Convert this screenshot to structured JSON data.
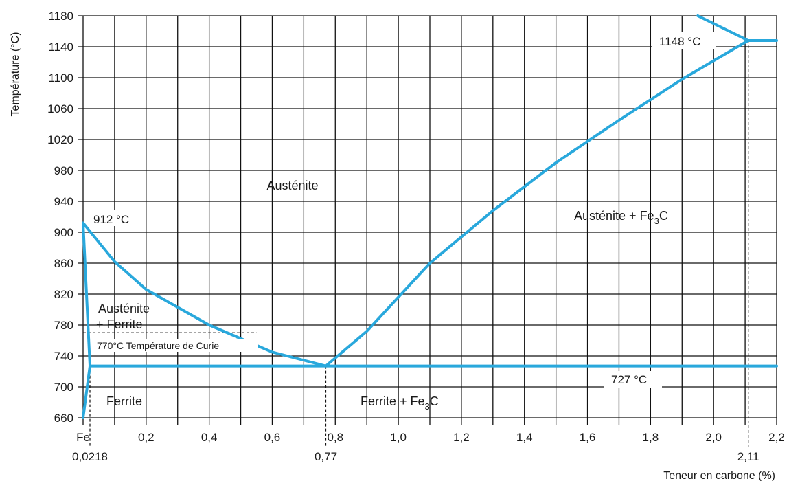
{
  "chart_data": {
    "type": "line",
    "title": "",
    "xlabel": "Teneur en carbone (%)",
    "ylabel": "Température (°C)",
    "xlim": [
      0,
      2.2
    ],
    "ylim": [
      660,
      1180
    ],
    "grid": true,
    "x_ticks": [
      {
        "value": 0,
        "label": "Fe"
      },
      {
        "value": 0.2,
        "label": "0,2"
      },
      {
        "value": 0.4,
        "label": "0,4"
      },
      {
        "value": 0.6,
        "label": "0,6"
      },
      {
        "value": 0.8,
        "label": "0,8"
      },
      {
        "value": 1.0,
        "label": "1,0"
      },
      {
        "value": 1.2,
        "label": "1,2"
      },
      {
        "value": 1.4,
        "label": "1,4"
      },
      {
        "value": 1.6,
        "label": "1,6"
      },
      {
        "value": 1.8,
        "label": "1,8"
      },
      {
        "value": 2.0,
        "label": "2,0"
      },
      {
        "value": 2.2,
        "label": "2,2"
      }
    ],
    "y_ticks": [
      660,
      700,
      740,
      780,
      820,
      860,
      900,
      940,
      980,
      1020,
      1060,
      1100,
      1140,
      1180
    ],
    "grid_step_x": 0.1,
    "grid_step_y": 40,
    "line_color": "#29a8dc",
    "series": [
      {
        "id": "a3-line",
        "x": [
          0,
          0.1,
          0.2,
          0.4,
          0.6,
          0.77
        ],
        "y": [
          912,
          862,
          826,
          780,
          745,
          727
        ]
      },
      {
        "id": "acm-line",
        "x": [
          0.77,
          0.9,
          1.1,
          1.3,
          1.5,
          1.7,
          1.9,
          2.11
        ],
        "y": [
          727,
          772,
          860,
          928,
          990,
          1045,
          1098,
          1148
        ]
      },
      {
        "id": "eutectoid-line",
        "x": [
          0.0218,
          2.2
        ],
        "y": [
          727,
          727
        ]
      },
      {
        "id": "eutectic-line",
        "x": [
          2.11,
          2.2
        ],
        "y": [
          1148,
          1148
        ]
      },
      {
        "id": "ferrite-solvus-upper",
        "x": [
          0,
          0.0218
        ],
        "y": [
          912,
          727
        ]
      },
      {
        "id": "ferrite-solvus-lower",
        "x": [
          0.0218,
          0
        ],
        "y": [
          727,
          660
        ]
      },
      {
        "id": "liquidus-line",
        "x": [
          1.95,
          2.11
        ],
        "y": [
          1180,
          1148
        ]
      }
    ],
    "dashed_lines": [
      {
        "id": "curie-line",
        "x": [
          0,
          0.55
        ],
        "y": [
          770,
          770
        ]
      },
      {
        "id": "guide-0218",
        "x": [
          0.0218,
          0.0218
        ],
        "y": [
          727,
          660
        ]
      },
      {
        "id": "guide-077",
        "x": [
          0.77,
          0.77
        ],
        "y": [
          727,
          660
        ]
      },
      {
        "id": "guide-211",
        "x": [
          2.11,
          2.11
        ],
        "y": [
          1148,
          660
        ]
      }
    ],
    "below_axis_labels": [
      {
        "x": 0.0218,
        "label": "0,0218"
      },
      {
        "x": 0.77,
        "label": "0,77"
      },
      {
        "x": 2.11,
        "label": "2,11"
      }
    ],
    "regions": [
      {
        "id": "austenite",
        "lines": [
          "Austénite"
        ]
      },
      {
        "id": "austenite-fe3c",
        "lines": [
          "Austénite + Fe",
          "3",
          "C"
        ]
      },
      {
        "id": "austenite-ferrite",
        "lines": [
          "Austénite",
          "+ Ferrite"
        ]
      },
      {
        "id": "ferrite",
        "lines": [
          "Ferrite"
        ]
      },
      {
        "id": "ferrite-fe3c",
        "lines": [
          "Ferrite + Fe",
          "3",
          "C"
        ]
      }
    ],
    "annotations": [
      {
        "id": "t912",
        "text": "912 °C",
        "x": 0,
        "y": 912
      },
      {
        "id": "t1148",
        "text": "1148 °C",
        "x": 2.11,
        "y": 1148
      },
      {
        "id": "t727",
        "text": "727 °C",
        "x": 1.9,
        "y": 727
      },
      {
        "id": "t770",
        "text": "770°C Température de Curie",
        "x": 0.05,
        "y": 770
      }
    ]
  }
}
